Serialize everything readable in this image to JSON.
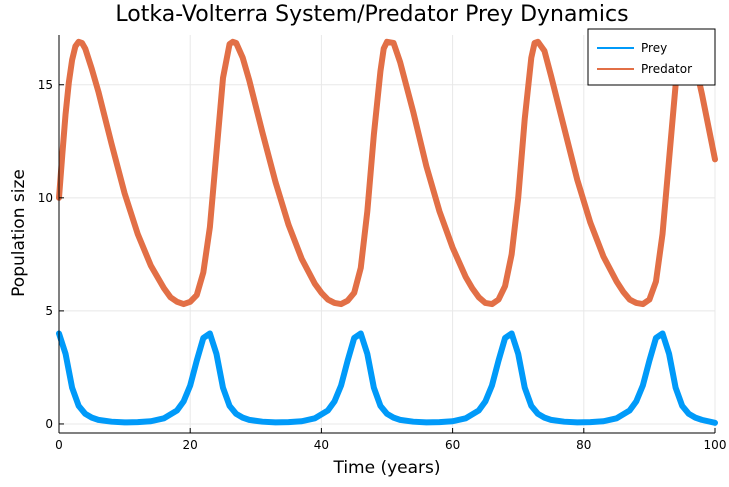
{
  "chart_data": {
    "type": "line",
    "title": "Lotka-Volterra System/Predator Prey Dynamics",
    "xlabel": "Time (years)",
    "ylabel": "Population size",
    "xlim": [
      0,
      100
    ],
    "ylim": [
      -0.4,
      17.2
    ],
    "xticks": [
      0,
      20,
      40,
      60,
      80,
      100
    ],
    "xtick_labels": [
      "0",
      "20",
      "40",
      "60",
      "80",
      "100"
    ],
    "yticks": [
      0,
      5,
      10,
      15
    ],
    "ytick_labels": [
      "0",
      "5",
      "10",
      "15"
    ],
    "grid": true,
    "legend_position": "top-right",
    "series": [
      {
        "name": "Prey",
        "color": "#009af9",
        "x": [
          0,
          1,
          2,
          3,
          4,
          5,
          6,
          8,
          10,
          12,
          14,
          16,
          18,
          19,
          20,
          21,
          22,
          23,
          24,
          25,
          26,
          27,
          28,
          29,
          31,
          33,
          35,
          37,
          39,
          41,
          42,
          43,
          44,
          45,
          46,
          47,
          48,
          49,
          50,
          51,
          52,
          54,
          56,
          58,
          60,
          62,
          64,
          65,
          66,
          67,
          68,
          69,
          70,
          71,
          72,
          73,
          74,
          75,
          77,
          79,
          81,
          83,
          85,
          87,
          88,
          89,
          90,
          91,
          92,
          93,
          94,
          95,
          96,
          97,
          98,
          100
        ],
        "y": [
          4.0,
          3.1,
          1.6,
          0.8,
          0.45,
          0.28,
          0.18,
          0.1,
          0.07,
          0.08,
          0.12,
          0.25,
          0.6,
          1.0,
          1.7,
          2.8,
          3.8,
          4.0,
          3.1,
          1.6,
          0.8,
          0.45,
          0.28,
          0.18,
          0.1,
          0.07,
          0.08,
          0.12,
          0.25,
          0.6,
          1.0,
          1.7,
          2.8,
          3.8,
          4.0,
          3.1,
          1.6,
          0.8,
          0.45,
          0.28,
          0.18,
          0.1,
          0.07,
          0.08,
          0.12,
          0.25,
          0.6,
          1.0,
          1.7,
          2.8,
          3.8,
          4.0,
          3.1,
          1.6,
          0.8,
          0.45,
          0.28,
          0.18,
          0.1,
          0.07,
          0.08,
          0.12,
          0.25,
          0.6,
          1.0,
          1.7,
          2.8,
          3.8,
          4.0,
          3.1,
          1.6,
          0.8,
          0.45,
          0.28,
          0.18,
          0.05
        ]
      },
      {
        "name": "Predator",
        "color": "#e26f46",
        "x": [
          0,
          0.5,
          1,
          1.5,
          2,
          2.5,
          3,
          3.5,
          4,
          5,
          6,
          8,
          10,
          12,
          14,
          16,
          17,
          18,
          19,
          20,
          21,
          22,
          23,
          24,
          25,
          26,
          26.5,
          27,
          28,
          29,
          31,
          33,
          35,
          37,
          39,
          40,
          41,
          42,
          43,
          44,
          45,
          46,
          47,
          48,
          49,
          49.5,
          50,
          51,
          52,
          54,
          56,
          58,
          60,
          62,
          63,
          64,
          65,
          66,
          67,
          68,
          69,
          70,
          71,
          72,
          72.5,
          73,
          74,
          75,
          77,
          79,
          81,
          83,
          85,
          86,
          87,
          88,
          89,
          90,
          91,
          92,
          93,
          94,
          95,
          95.5,
          96,
          97,
          98,
          100
        ],
        "y": [
          10.0,
          11.9,
          13.7,
          15.1,
          16.1,
          16.7,
          16.9,
          16.85,
          16.6,
          15.7,
          14.7,
          12.4,
          10.2,
          8.4,
          7.0,
          6.0,
          5.6,
          5.4,
          5.3,
          5.4,
          5.7,
          6.7,
          8.7,
          12.0,
          15.3,
          16.8,
          16.9,
          16.85,
          16.2,
          15.2,
          12.9,
          10.7,
          8.8,
          7.3,
          6.2,
          5.8,
          5.5,
          5.35,
          5.3,
          5.45,
          5.8,
          6.9,
          9.4,
          12.8,
          15.6,
          16.6,
          16.9,
          16.85,
          16.0,
          13.8,
          11.4,
          9.4,
          7.8,
          6.5,
          6.0,
          5.6,
          5.35,
          5.3,
          5.5,
          6.1,
          7.5,
          10.0,
          13.5,
          16.2,
          16.85,
          16.9,
          16.5,
          15.4,
          13.1,
          10.8,
          8.9,
          7.4,
          6.3,
          5.85,
          5.5,
          5.35,
          5.3,
          5.5,
          6.3,
          8.4,
          11.7,
          15.0,
          16.7,
          16.9,
          16.8,
          15.9,
          14.6,
          11.7
        ]
      }
    ]
  }
}
